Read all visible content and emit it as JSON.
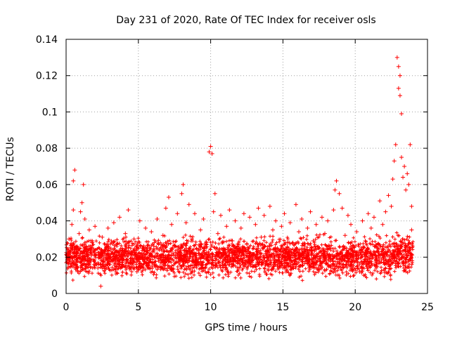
{
  "chart_data": {
    "type": "scatter",
    "title": "Day 231 of 2020, Rate Of TEC Index for receiver osls",
    "xlabel": "GPS time / hours",
    "ylabel": "ROTI / TECUs",
    "xlim": [
      0,
      25
    ],
    "ylim": [
      0,
      0.14
    ],
    "xticks": [
      0,
      5,
      10,
      15,
      20,
      25
    ],
    "xtick_labels": [
      "0",
      "5",
      "10",
      "15",
      "20",
      "25"
    ],
    "yticks": [
      0,
      0.02,
      0.04,
      0.06,
      0.08,
      0.1,
      0.12,
      0.14
    ],
    "ytick_labels": [
      "0",
      "0.02",
      "0.04",
      "0.06",
      "0.08",
      "0.1",
      "0.12",
      "0.14"
    ],
    "grid": true,
    "marker": "+",
    "marker_color": "#ff0000",
    "series": [
      {
        "name": "ROTI",
        "points": [
          [
            0.1,
            0.021
          ],
          [
            0.2,
            0.03
          ],
          [
            0.3,
            0.015
          ],
          [
            0.4,
            0.038
          ],
          [
            0.5,
            0.046
          ],
          [
            0.5,
            0.062
          ],
          [
            0.6,
            0.068
          ],
          [
            0.7,
            0.025
          ],
          [
            0.8,
            0.012
          ],
          [
            0.9,
            0.033
          ],
          [
            1.0,
            0.045
          ],
          [
            1.1,
            0.05
          ],
          [
            1.2,
            0.06
          ],
          [
            1.3,
            0.041
          ],
          [
            1.4,
            0.022
          ],
          [
            1.5,
            0.018
          ],
          [
            1.6,
            0.035
          ],
          [
            1.8,
            0.028
          ],
          [
            2.0,
            0.037
          ],
          [
            2.2,
            0.014
          ],
          [
            2.4,
            0.004
          ],
          [
            2.5,
            0.031
          ],
          [
            2.7,
            0.024
          ],
          [
            2.9,
            0.036
          ],
          [
            3.1,
            0.019
          ],
          [
            3.3,
            0.039
          ],
          [
            3.5,
            0.027
          ],
          [
            3.7,
            0.042
          ],
          [
            3.9,
            0.016
          ],
          [
            4.1,
            0.033
          ],
          [
            4.3,
            0.046
          ],
          [
            4.5,
            0.023
          ],
          [
            4.7,
            0.03
          ],
          [
            4.9,
            0.012
          ],
          [
            5.1,
            0.04
          ],
          [
            5.3,
            0.025
          ],
          [
            5.5,
            0.036
          ],
          [
            5.7,
            0.018
          ],
          [
            5.9,
            0.034
          ],
          [
            6.1,
            0.028
          ],
          [
            6.3,
            0.041
          ],
          [
            6.5,
            0.015
          ],
          [
            6.7,
            0.032
          ],
          [
            6.9,
            0.047
          ],
          [
            7.1,
            0.053
          ],
          [
            7.3,
            0.038
          ],
          [
            7.5,
            0.026
          ],
          [
            7.7,
            0.044
          ],
          [
            7.9,
            0.021
          ],
          [
            8.0,
            0.055
          ],
          [
            8.1,
            0.06
          ],
          [
            8.3,
            0.039
          ],
          [
            8.5,
            0.049
          ],
          [
            8.7,
            0.03
          ],
          [
            8.9,
            0.044
          ],
          [
            9.1,
            0.017
          ],
          [
            9.3,
            0.035
          ],
          [
            9.5,
            0.041
          ],
          [
            9.7,
            0.028
          ],
          [
            9.9,
            0.078
          ],
          [
            10.0,
            0.081
          ],
          [
            10.1,
            0.077
          ],
          [
            10.2,
            0.045
          ],
          [
            10.3,
            0.055
          ],
          [
            10.5,
            0.033
          ],
          [
            10.7,
            0.043
          ],
          [
            10.9,
            0.022
          ],
          [
            11.1,
            0.037
          ],
          [
            11.3,
            0.046
          ],
          [
            11.5,
            0.029
          ],
          [
            11.7,
            0.04
          ],
          [
            11.9,
            0.018
          ],
          [
            12.1,
            0.036
          ],
          [
            12.3,
            0.044
          ],
          [
            12.5,
            0.027
          ],
          [
            12.7,
            0.042
          ],
          [
            12.9,
            0.015
          ],
          [
            13.1,
            0.038
          ],
          [
            13.3,
            0.047
          ],
          [
            13.5,
            0.031
          ],
          [
            13.7,
            0.043
          ],
          [
            13.9,
            0.024
          ],
          [
            14.1,
            0.048
          ],
          [
            14.3,
            0.035
          ],
          [
            14.5,
            0.04
          ],
          [
            14.7,
            0.02
          ],
          [
            14.9,
            0.037
          ],
          [
            15.1,
            0.044
          ],
          [
            15.3,
            0.028
          ],
          [
            15.5,
            0.039
          ],
          [
            15.7,
            0.016
          ],
          [
            15.9,
            0.049
          ],
          [
            16.1,
            0.034
          ],
          [
            16.3,
            0.041
          ],
          [
            16.5,
            0.023
          ],
          [
            16.7,
            0.036
          ],
          [
            16.9,
            0.045
          ],
          [
            17.1,
            0.029
          ],
          [
            17.3,
            0.038
          ],
          [
            17.5,
            0.019
          ],
          [
            17.7,
            0.042
          ],
          [
            17.9,
            0.033
          ],
          [
            18.1,
            0.04
          ],
          [
            18.3,
            0.025
          ],
          [
            18.5,
            0.046
          ],
          [
            18.6,
            0.057
          ],
          [
            18.7,
            0.062
          ],
          [
            18.9,
            0.055
          ],
          [
            19.1,
            0.047
          ],
          [
            19.3,
            0.032
          ],
          [
            19.5,
            0.043
          ],
          [
            19.7,
            0.038
          ],
          [
            19.9,
            0.021
          ],
          [
            20.1,
            0.034
          ],
          [
            20.3,
            0.012
          ],
          [
            20.5,
            0.04
          ],
          [
            20.7,
            0.029
          ],
          [
            20.9,
            0.044
          ],
          [
            21.1,
            0.036
          ],
          [
            21.3,
            0.042
          ],
          [
            21.5,
            0.025
          ],
          [
            21.7,
            0.051
          ],
          [
            21.9,
            0.038
          ],
          [
            22.1,
            0.045
          ],
          [
            22.3,
            0.054
          ],
          [
            22.5,
            0.048
          ],
          [
            22.6,
            0.063
          ],
          [
            22.7,
            0.073
          ],
          [
            22.8,
            0.082
          ],
          [
            22.9,
            0.13
          ],
          [
            23.0,
            0.125
          ],
          [
            23.0,
            0.113
          ],
          [
            23.1,
            0.12
          ],
          [
            23.1,
            0.109
          ],
          [
            23.2,
            0.099
          ],
          [
            23.2,
            0.075
          ],
          [
            23.3,
            0.064
          ],
          [
            23.4,
            0.07
          ],
          [
            23.5,
            0.057
          ],
          [
            23.6,
            0.066
          ],
          [
            23.7,
            0.06
          ],
          [
            23.8,
            0.082
          ],
          [
            23.9,
            0.048
          ],
          [
            23.9,
            0.035
          ]
        ]
      }
    ]
  }
}
